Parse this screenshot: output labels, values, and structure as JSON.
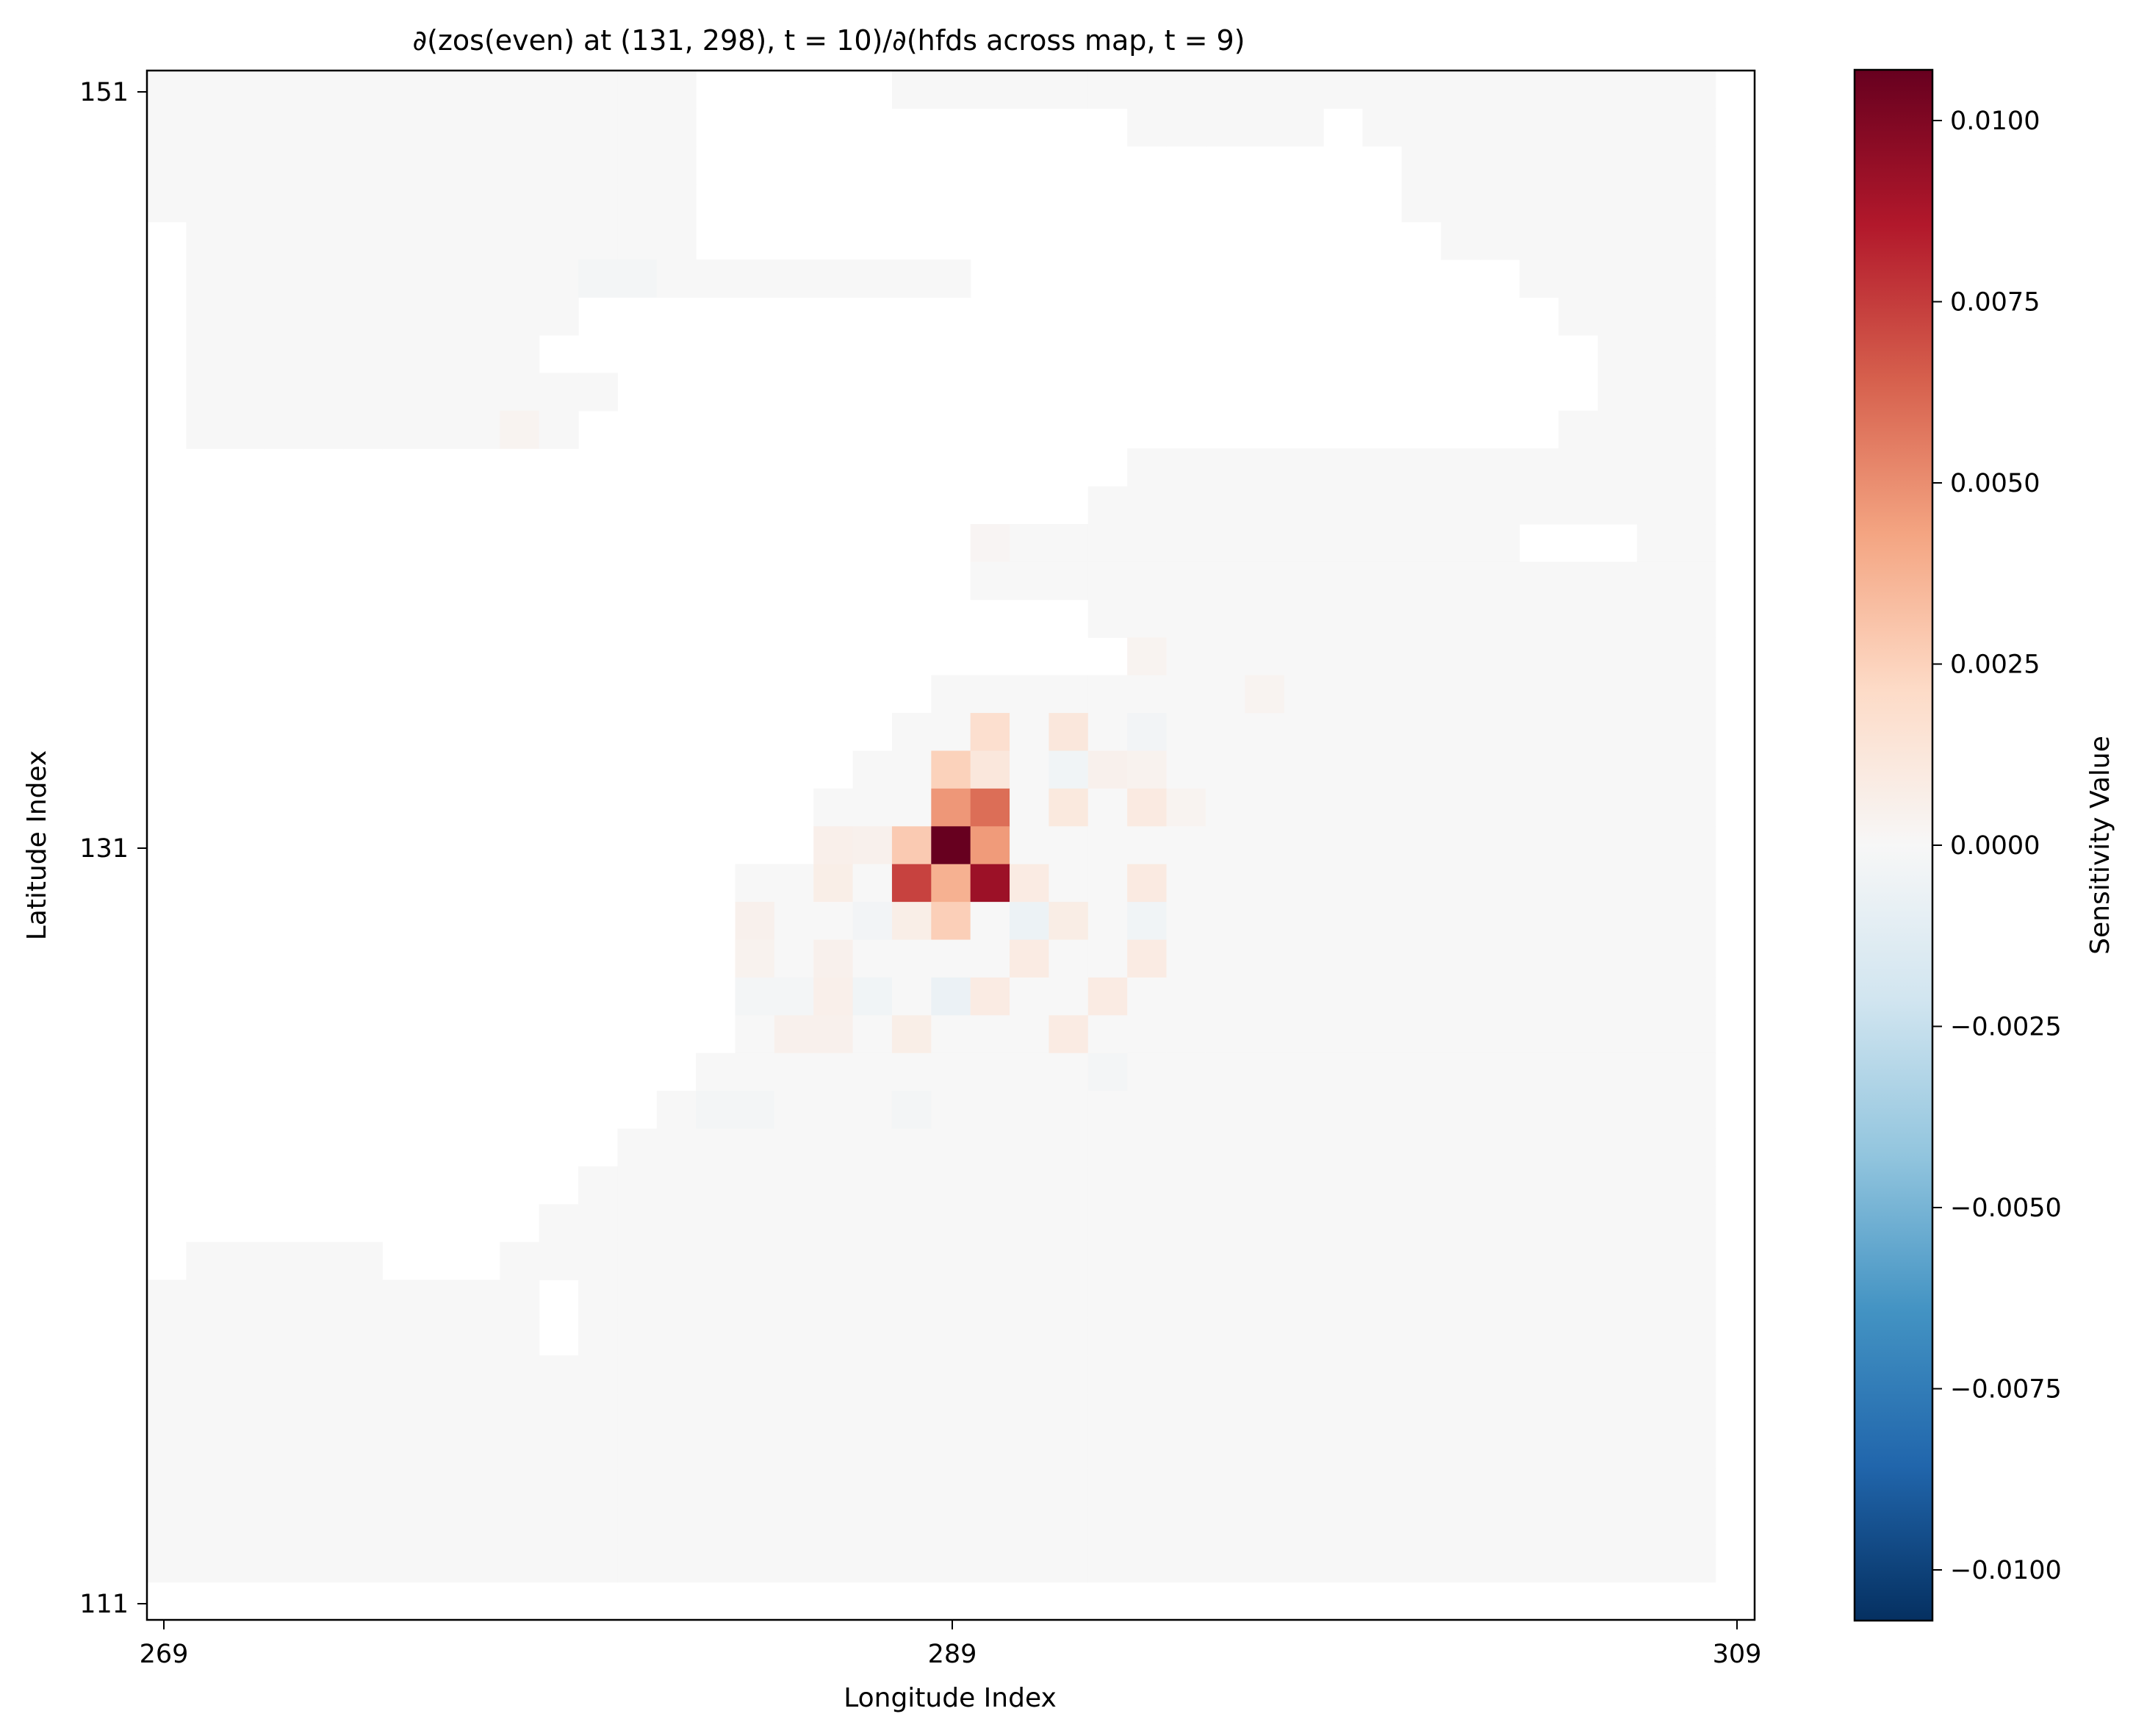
{
  "chart_data": {
    "type": "heatmap",
    "title": "∂(zos(even) at (131, 298), t = 10)/∂(hfds across map, t = 9)",
    "xlabel": "Longitude Index",
    "ylabel": "Latitude Index",
    "x_ticks": [
      "269",
      "289",
      "309"
    ],
    "y_ticks": [
      "151",
      "131",
      "111"
    ],
    "xlim": [
      268.5,
      309.5
    ],
    "ylim": [
      110.5,
      151.5
    ],
    "colorbar": {
      "label": "Sensitivity Value",
      "vmin": -0.0107,
      "vmax": 0.0107,
      "colormap": "RdBu_r",
      "ticks": [
        "0.0100",
        "0.0075",
        "0.0050",
        "0.0025",
        "0.0000",
        "−0.0025",
        "−0.0050",
        "−0.0075",
        "−0.0100"
      ],
      "tick_values": [
        0.01,
        0.0075,
        0.005,
        0.0025,
        0.0,
        -0.0025,
        -0.005,
        -0.0075,
        -0.01
      ]
    },
    "land_mask_rows_top_to_bottom": [
      "..............XXXXX.....................",
      "..............XXXXXXXXXXX.....X.........",
      "..............XXXXXXXXXXXXXXXXXX........",
      "..............XXXXXXXXXXXXXXXXXX........",
      "X.............XXXXXXXXXXXXXXXXXXX.......",
      "X....................XXXXXXXXXXXXXX.....",
      "X..........XXXXXXXXXXXXXXXXXXXXXXXXX....",
      "X.........XXXXXXXXXXXXXXXXXXXXXXXXXXX...",
      "X...........XXXXXXXXXXXXXXXXXXXXXXXXX...",
      "X..........XXXXXXXXXXXXXXXXXXXXXXXXX....",
      "XXXXXXXXXXXXXXXXXXXXXXXXX...............",
      "XXXXXXXXXXXXXXXXXXXXXXXX................",
      "XXXXXXXXXXXXXXXXXXXXX..............XXX..",
      "XXXXXXXXXXXXXXXXXXXXX...................",
      "XXXXXXXXXXXXXXXXXXXXXXXX................",
      "XXXXXXXXXXXXXXXXXXXXXXXXX...............",
      "XXXXXXXXXXXXXXXXXXXX....................",
      "XXXXXXXXXXXXXXXXXXX.....................",
      "XXXXXXXXXXXXXXXXXX......................",
      "XXXXXXXXXXXXXXXXX.......................",
      "XXXXXXXXXXXXXXXXX.......................",
      "XXXXXXXXXXXXXXX.........................",
      "XXXXXXXXXXXXXXX.........................",
      "XXXXXXXXXXXXXXX.........................",
      "XXXXXXXXXXXXXXX.........................",
      "XXXXXXXXXXXXXXX.........................",
      "XXXXXXXXXXXXXX..........................",
      "XXXXXXXXXXXXX...........................",
      "XXXXXXXXXXXX............................",
      "XXXXXXXXXXX.............................",
      "XXXXXXXXXX..............................",
      "X.....XXX...............................",
      "..........X.............................",
      "..........X.............................",
      "........................................",
      "........................................",
      "........................................",
      "........................................",
      "........................................",
      "........................................"
    ],
    "sensitivity_cells": [
      {
        "lon": 289,
        "lat": 131,
        "value": 0.0107
      },
      {
        "lon": 290,
        "lat": 130,
        "value": 0.0092
      },
      {
        "lon": 288,
        "lat": 130,
        "value": 0.0073
      },
      {
        "lon": 290,
        "lat": 132,
        "value": 0.006
      },
      {
        "lon": 289,
        "lat": 132,
        "value": 0.0047
      },
      {
        "lon": 290,
        "lat": 131,
        "value": 0.0046
      },
      {
        "lon": 289,
        "lat": 130,
        "value": 0.0038
      },
      {
        "lon": 288,
        "lat": 131,
        "value": 0.0028
      },
      {
        "lon": 289,
        "lat": 129,
        "value": 0.0026
      },
      {
        "lon": 289,
        "lat": 133,
        "value": 0.0025
      },
      {
        "lon": 290,
        "lat": 134,
        "value": 0.0018
      },
      {
        "lon": 292,
        "lat": 134,
        "value": 0.0012
      },
      {
        "lon": 290,
        "lat": 133,
        "value": 0.0012
      },
      {
        "lon": 292,
        "lat": 132,
        "value": 0.0011
      },
      {
        "lon": 294,
        "lat": 132,
        "value": 0.001
      },
      {
        "lon": 291,
        "lat": 130,
        "value": 0.0009
      },
      {
        "lon": 294,
        "lat": 130,
        "value": 0.001
      },
      {
        "lon": 286,
        "lat": 130,
        "value": 0.0007
      },
      {
        "lon": 286,
        "lat": 131,
        "value": 0.0006
      },
      {
        "lon": 287,
        "lat": 131,
        "value": 0.0005
      },
      {
        "lon": 288,
        "lat": 129,
        "value": 0.0007
      },
      {
        "lon": 291,
        "lat": 128,
        "value": 0.0009
      },
      {
        "lon": 294,
        "lat": 128,
        "value": 0.0009
      },
      {
        "lon": 292,
        "lat": 129,
        "value": 0.0008
      },
      {
        "lon": 290,
        "lat": 127,
        "value": 0.0009
      },
      {
        "lon": 293,
        "lat": 127,
        "value": 0.0009
      },
      {
        "lon": 292,
        "lat": 126,
        "value": 0.0009
      },
      {
        "lon": 288,
        "lat": 126,
        "value": 0.0007
      },
      {
        "lon": 284,
        "lat": 129,
        "value": 0.0005
      },
      {
        "lon": 284,
        "lat": 128,
        "value": 0.0004
      },
      {
        "lon": 286,
        "lat": 128,
        "value": 0.0005
      },
      {
        "lon": 286,
        "lat": 127,
        "value": 0.0006
      },
      {
        "lon": 285,
        "lat": 126,
        "value": 0.0005
      },
      {
        "lon": 286,
        "lat": 126,
        "value": 0.0005
      },
      {
        "lon": 287,
        "lat": 129,
        "value": -0.0003
      },
      {
        "lon": 287,
        "lat": 127,
        "value": -0.0004
      },
      {
        "lon": 289,
        "lat": 127,
        "value": -0.0007
      },
      {
        "lon": 291,
        "lat": 129,
        "value": -0.0006
      },
      {
        "lon": 294,
        "lat": 129,
        "value": -0.0004
      },
      {
        "lon": 292,
        "lat": 133,
        "value": -0.0004
      },
      {
        "lon": 294,
        "lat": 134,
        "value": -0.0003
      },
      {
        "lon": 285,
        "lat": 127,
        "value": -0.0002
      },
      {
        "lon": 284,
        "lat": 127,
        "value": -0.0002
      },
      {
        "lon": 283,
        "lat": 124,
        "value": -0.0002
      },
      {
        "lon": 284,
        "lat": 124,
        "value": -0.0002
      },
      {
        "lon": 288,
        "lat": 124,
        "value": -0.0002
      },
      {
        "lon": 293,
        "lat": 125,
        "value": -0.0002
      },
      {
        "lon": 280,
        "lat": 146,
        "value": -0.0002
      },
      {
        "lon": 281,
        "lat": 146,
        "value": -0.0002
      },
      {
        "lon": 286,
        "lat": 133,
        "value": 0.0004
      },
      {
        "lon": 293,
        "lat": 133,
        "value": 0.0005
      },
      {
        "lon": 294,
        "lat": 133,
        "value": 0.0004
      },
      {
        "lon": 295,
        "lat": 132,
        "value": 0.0003
      },
      {
        "lon": 297,
        "lat": 135,
        "value": 0.0003
      },
      {
        "lon": 294,
        "lat": 136,
        "value": 0.0003
      },
      {
        "lon": 278,
        "lat": 142,
        "value": 0.0003
      },
      {
        "lon": 280,
        "lat": 142,
        "value": 0.0003
      },
      {
        "lon": 281,
        "lat": 143,
        "value": 0.0002
      },
      {
        "lon": 292,
        "lat": 140,
        "value": 0.0002
      },
      {
        "lon": 290,
        "lat": 139,
        "value": 0.0002
      }
    ]
  }
}
